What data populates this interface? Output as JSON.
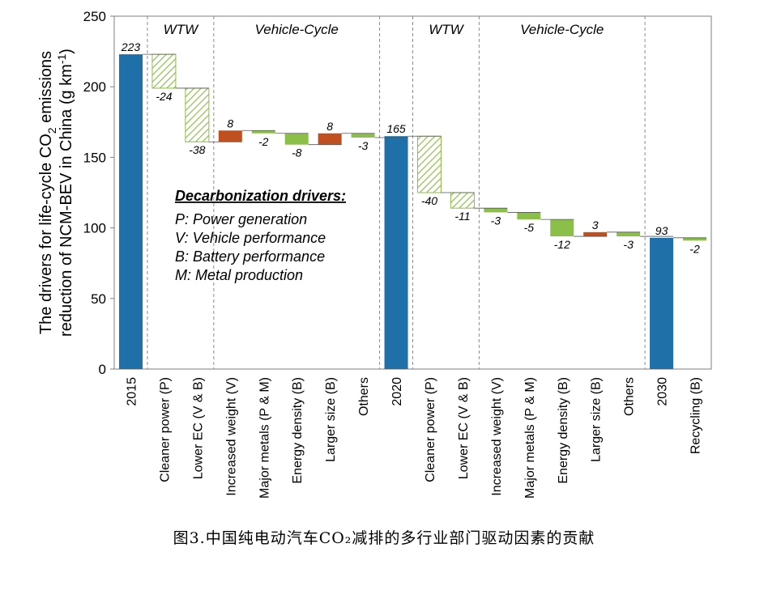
{
  "chart_data": {
    "type": "waterfall",
    "ylabel_line1": "The drivers for life-cycle CO",
    "ylabel_line1_sub": "2",
    "ylabel_line1_tail": " emissions",
    "ylabel_line2": "reduction of NCM-BEV in China (g km",
    "ylabel_line2_sup": "-1",
    "ylabel_line2_tail": ")",
    "ylim": [
      0,
      250
    ],
    "yticks": [
      "0",
      "50",
      "100",
      "150",
      "200",
      "250"
    ],
    "bars": [
      {
        "category": "2015",
        "value": 223,
        "label": "223",
        "kind": "total"
      },
      {
        "category": "Cleaner power (P)",
        "value": -24,
        "label": "-24",
        "kind": "wtw"
      },
      {
        "category": "Lower EC (V & B)",
        "value": -38,
        "label": "-38",
        "kind": "wtw"
      },
      {
        "category": "Increased weight (V)",
        "value": 8,
        "label": "8",
        "kind": "increase"
      },
      {
        "category": "Major metals (P & M)",
        "value": -2,
        "label": "-2",
        "kind": "decrease"
      },
      {
        "category": "Energy density (B)",
        "value": -8,
        "label": "-8",
        "kind": "decrease"
      },
      {
        "category": "Larger size (B)",
        "value": 8,
        "label": "8",
        "kind": "increase"
      },
      {
        "category": "Others",
        "value": -3,
        "label": "-3",
        "kind": "decrease"
      },
      {
        "category": "2020",
        "value": 165,
        "label": "165",
        "kind": "total"
      },
      {
        "category": "Cleaner power (P)",
        "value": -40,
        "label": "-40",
        "kind": "wtw"
      },
      {
        "category": "Lower EC (V & B)",
        "value": -11,
        "label": "-11",
        "kind": "wtw"
      },
      {
        "category": "Increased weight (V)",
        "value": -3,
        "label": "-3",
        "kind": "decrease"
      },
      {
        "category": "Major metals (P & M)",
        "value": -5,
        "label": "-5",
        "kind": "decrease"
      },
      {
        "category": "Energy density (B)",
        "value": -12,
        "label": "-12",
        "kind": "decrease"
      },
      {
        "category": "Larger size (B)",
        "value": 3,
        "label": "3",
        "kind": "increase"
      },
      {
        "category": "Others",
        "value": -3,
        "label": "-3",
        "kind": "decrease"
      },
      {
        "category": "2030",
        "value": 93,
        "label": "93",
        "kind": "total"
      },
      {
        "category": "Recycling (B)",
        "value": -2,
        "label": "-2",
        "kind": "decrease"
      }
    ],
    "sections": [
      {
        "label": "WTW",
        "from": 1,
        "to": 2
      },
      {
        "label": "Vehicle-Cycle",
        "from": 3,
        "to": 7
      },
      {
        "label": "WTW",
        "from": 9,
        "to": 10
      },
      {
        "label": "Vehicle-Cycle",
        "from": 11,
        "to": 15
      }
    ],
    "legend": {
      "title": "Decarbonization drivers:",
      "items": [
        "P:  Power generation",
        "V:  Vehicle performance",
        "B:  Battery performance",
        "M:  Metal production"
      ]
    },
    "colors": {
      "total": "#1f6fa8",
      "increase": "#c0501f",
      "decrease": "#8cbf4a",
      "wtw_hatch": "#8cbf4a",
      "frame": "#7f7f7f",
      "divider": "#8c8c8c",
      "connector": "#555555"
    }
  },
  "caption": "图3.中国纯电动汽车CO₂减排的多行业部门驱动因素的贡献"
}
